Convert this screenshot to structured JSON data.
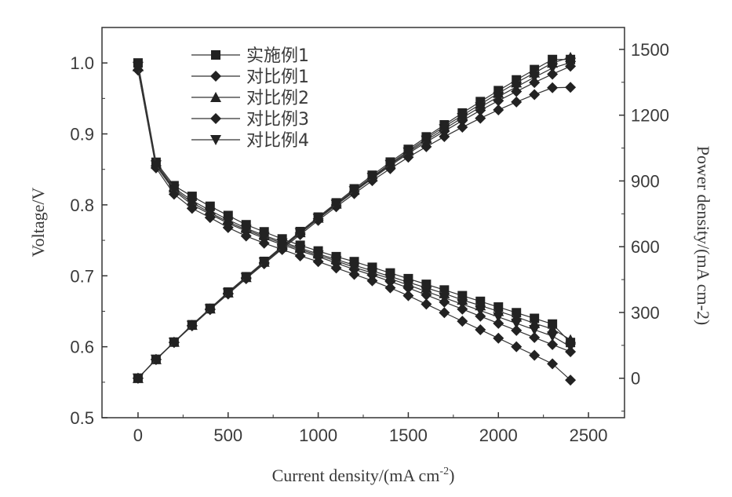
{
  "chart_data": {
    "type": "line",
    "xlabel": "Current density/(mA cm",
    "xlabel_sup": "-2",
    "xlabel_tail": ")",
    "ylabel": "Voltage/V",
    "y2label": "Power density/(mA cm-2)",
    "xlim": [
      -200,
      2700
    ],
    "ylim": [
      0.5,
      1.05
    ],
    "y2lim": [
      -180,
      1600
    ],
    "xticks": [
      0,
      500,
      1000,
      1500,
      2000,
      2500
    ],
    "yticks": [
      0.5,
      0.6,
      0.7,
      0.8,
      0.9,
      1.0
    ],
    "y2ticks": [
      0,
      300,
      600,
      900,
      1200,
      1500
    ],
    "xtick_labels": [
      "0",
      "500",
      "1000",
      "1500",
      "2000",
      "2500"
    ],
    "ytick_labels": [
      "0.5",
      "0.6",
      "0.7",
      "0.8",
      "0.9",
      "1.0"
    ],
    "y2tick_labels": [
      "0",
      "300",
      "600",
      "900",
      "1200",
      "1500"
    ],
    "grid": false,
    "legend_position": "top-left",
    "x": [
      0,
      100,
      200,
      300,
      400,
      500,
      600,
      700,
      800,
      900,
      1000,
      1100,
      1200,
      1300,
      1400,
      1500,
      1600,
      1700,
      1800,
      1900,
      2000,
      2100,
      2200,
      2300,
      2400
    ],
    "series": [
      {
        "name": "实施例1",
        "marker": "square",
        "voltage": [
          1.0,
          0.86,
          0.827,
          0.812,
          0.798,
          0.785,
          0.772,
          0.762,
          0.752,
          0.743,
          0.735,
          0.727,
          0.72,
          0.712,
          0.704,
          0.696,
          0.688,
          0.68,
          0.672,
          0.664,
          0.656,
          0.648,
          0.64,
          0.632,
          0.606
        ],
        "power": [
          0,
          86,
          165,
          244,
          319,
          393,
          463,
          533,
          602,
          669,
          735,
          800,
          864,
          926,
          986,
          1044,
          1101,
          1156,
          1210,
          1262,
          1312,
          1361,
          1408,
          1454,
          1454
        ]
      },
      {
        "name": "对比例1",
        "marker": "diamond",
        "voltage": [
          0.99,
          0.855,
          0.82,
          0.8,
          0.787,
          0.774,
          0.763,
          0.753,
          0.744,
          0.735,
          0.727,
          0.718,
          0.709,
          0.701,
          0.692,
          0.683,
          0.673,
          0.663,
          0.653,
          0.643,
          0.633,
          0.623,
          0.613,
          0.603,
          0.593
        ],
        "power": [
          0,
          86,
          164,
          240,
          315,
          387,
          458,
          527,
          595,
          662,
          727,
          790,
          851,
          911,
          969,
          1025,
          1077,
          1127,
          1175,
          1222,
          1266,
          1308,
          1349,
          1387,
          1423
        ]
      },
      {
        "name": "对比例2",
        "marker": "triangle-up",
        "voltage": [
          0.995,
          0.858,
          0.824,
          0.806,
          0.792,
          0.779,
          0.767,
          0.757,
          0.748,
          0.739,
          0.731,
          0.723,
          0.715,
          0.707,
          0.699,
          0.691,
          0.683,
          0.675,
          0.666,
          0.658,
          0.65,
          0.642,
          0.633,
          0.625,
          0.61
        ],
        "power": [
          0,
          86,
          165,
          242,
          317,
          390,
          460,
          530,
          598,
          665,
          731,
          795,
          858,
          919,
          979,
          1037,
          1093,
          1148,
          1199,
          1250,
          1300,
          1348,
          1393,
          1438,
          1464
        ]
      },
      {
        "name": "对比例3",
        "marker": "diamond",
        "voltage": [
          0.99,
          0.852,
          0.815,
          0.795,
          0.782,
          0.768,
          0.756,
          0.746,
          0.737,
          0.728,
          0.72,
          0.711,
          0.702,
          0.693,
          0.683,
          0.672,
          0.66,
          0.648,
          0.636,
          0.624,
          0.612,
          0.6,
          0.588,
          0.576,
          0.553
        ],
        "power": [
          0,
          85,
          163,
          239,
          313,
          384,
          454,
          522,
          590,
          655,
          720,
          782,
          842,
          901,
          956,
          1008,
          1056,
          1102,
          1145,
          1186,
          1224,
          1260,
          1294,
          1325,
          1327
        ]
      },
      {
        "name": "对比例4",
        "marker": "triangle-down",
        "voltage": [
          0.995,
          0.856,
          0.822,
          0.803,
          0.789,
          0.776,
          0.765,
          0.755,
          0.746,
          0.737,
          0.729,
          0.721,
          0.712,
          0.704,
          0.696,
          0.687,
          0.678,
          0.669,
          0.66,
          0.651,
          0.642,
          0.633,
          0.624,
          0.615,
          0.6
        ],
        "power": [
          0,
          86,
          164,
          241,
          316,
          388,
          459,
          529,
          597,
          663,
          729,
          793,
          854,
          915,
          974,
          1031,
          1085,
          1137,
          1188,
          1237,
          1284,
          1329,
          1373,
          1415,
          1440
        ]
      }
    ]
  }
}
